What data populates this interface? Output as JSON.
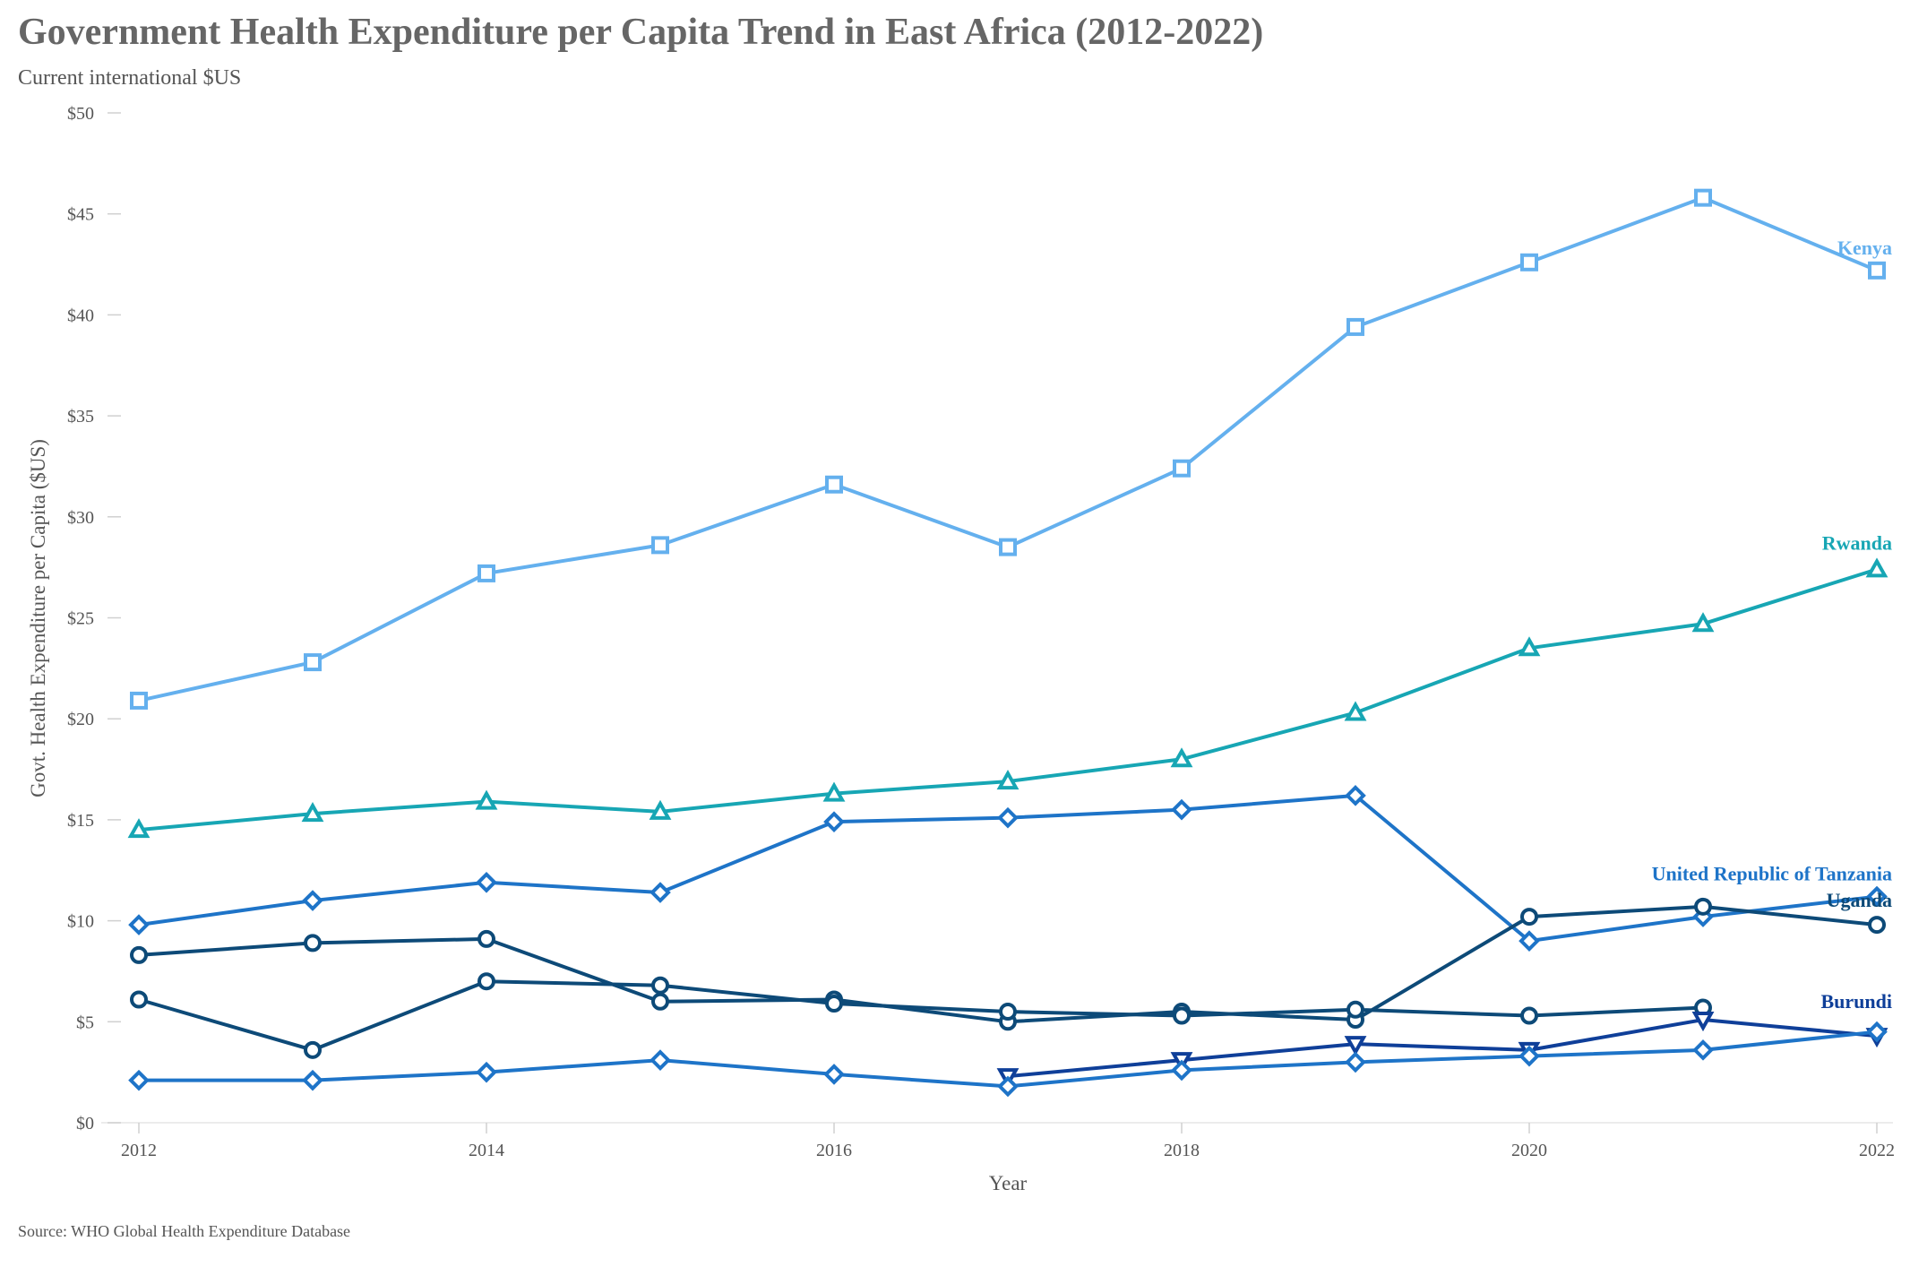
{
  "chart_data": {
    "type": "line",
    "title": "Government Health Expenditure per Capita Trend in East Africa (2012-2022)",
    "subtitle": "Current international $US",
    "xlabel": "Year",
    "ylabel": "Govt. Health Expenditure per Capita ($US)",
    "source": "Source: WHO Global Health Expenditure Database",
    "x_ticks": [
      "2012",
      "2014",
      "2016",
      "2018",
      "2020",
      "2022"
    ],
    "y_ticks": [
      "$0",
      "$5",
      "$10",
      "$15",
      "$20",
      "$25",
      "$30",
      "$35",
      "$40",
      "$45",
      "$50"
    ],
    "xlim": [
      2012,
      2022
    ],
    "ylim": [
      0,
      50
    ],
    "grid": false,
    "series": [
      {
        "name": "Kenya",
        "label": "Kenya",
        "color": "#64b0ee",
        "marker": "square",
        "x": [
          2012,
          2013,
          2014,
          2015,
          2016,
          2017,
          2018,
          2019,
          2020,
          2021,
          2022
        ],
        "values": [
          20.9,
          22.8,
          27.2,
          28.6,
          31.6,
          28.5,
          32.4,
          39.4,
          42.6,
          45.8,
          42.2
        ]
      },
      {
        "name": "Rwanda",
        "label": "Rwanda",
        "color": "#17a6b4",
        "marker": "triangle-up",
        "x": [
          2012,
          2013,
          2014,
          2015,
          2016,
          2017,
          2018,
          2019,
          2020,
          2021,
          2022
        ],
        "values": [
          14.5,
          15.3,
          15.9,
          15.4,
          16.3,
          16.9,
          18.0,
          20.3,
          23.5,
          24.7,
          27.4
        ]
      },
      {
        "name": "United Republic of Tanzania",
        "label": "United Republic of Tanzania",
        "color": "#1e74c8",
        "marker": "diamond",
        "x": [
          2012,
          2013,
          2014,
          2015,
          2016,
          2017,
          2018,
          2019,
          2020,
          2021,
          2022
        ],
        "values": [
          9.8,
          11.0,
          11.9,
          11.4,
          14.9,
          15.1,
          15.5,
          16.2,
          9.0,
          10.2,
          11.2
        ]
      },
      {
        "name": "Uganda",
        "label": "Uganda",
        "color": "#0d4a78",
        "marker": "circle",
        "x": [
          2012,
          2013,
          2014,
          2015,
          2016,
          2017,
          2018,
          2019,
          2020,
          2021,
          2022
        ],
        "values": [
          8.3,
          8.9,
          9.1,
          6.0,
          6.1,
          5.0,
          5.5,
          5.1,
          10.2,
          10.7,
          9.8
        ]
      },
      {
        "name": "",
        "label": "",
        "color": "#0d4a78",
        "marker": "circle",
        "x": [
          2012,
          2013,
          2014,
          2015,
          2016,
          2017,
          2018,
          2019,
          2020,
          2021
        ],
        "values": [
          6.1,
          3.6,
          7.0,
          6.8,
          5.9,
          5.5,
          5.3,
          5.6,
          5.3,
          5.7
        ]
      },
      {
        "name": "Burundi",
        "label": "Burundi",
        "color": "#0f3f99",
        "marker": "triangle-down",
        "x": [
          2017,
          2018,
          2019,
          2020,
          2021,
          2022
        ],
        "values": [
          2.3,
          3.1,
          3.9,
          3.6,
          5.1,
          4.3
        ]
      },
      {
        "name": "",
        "label": "",
        "color": "#1e74c8",
        "marker": "diamond",
        "x": [
          2012,
          2013,
          2014,
          2015,
          2016,
          2017,
          2018,
          2019,
          2020,
          2021,
          2022
        ],
        "values": [
          2.1,
          2.1,
          2.5,
          3.1,
          2.4,
          1.8,
          2.6,
          3.0,
          3.3,
          3.6,
          4.5
        ]
      }
    ]
  }
}
